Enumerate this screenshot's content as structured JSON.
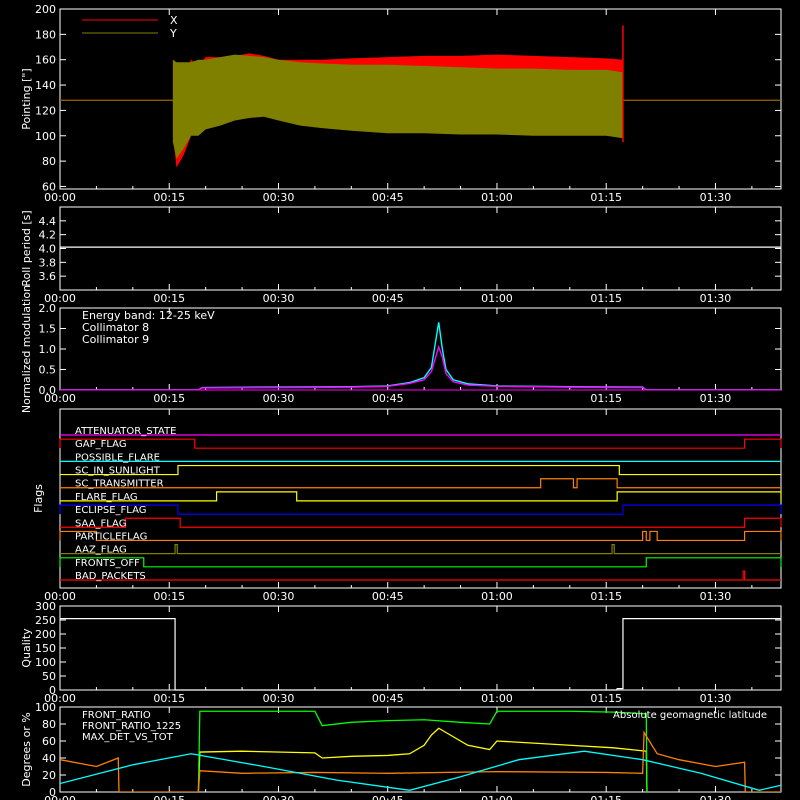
{
  "colors": {
    "background": "#000000",
    "axes": "#ffffff",
    "red": "#ff0000",
    "olive": "#808000",
    "cyan": "#00ffff",
    "magenta": "#ff00ff",
    "yellow": "#ffff00",
    "green": "#00ff00",
    "orange": "#ff8000",
    "blue": "#0000ff"
  },
  "time_axis": {
    "range_min": [
      0,
      99
    ],
    "ticks": [
      0,
      15,
      30,
      45,
      60,
      75,
      90
    ],
    "tick_labels": [
      "00:00",
      "00:15",
      "00:30",
      "00:45",
      "01:00",
      "01:15",
      "01:30"
    ]
  },
  "chart_data": [
    {
      "type": "area",
      "ylabel": "Pointing [\"]",
      "ylim": [
        58,
        200
      ],
      "yticks": [
        60,
        80,
        100,
        120,
        140,
        160,
        180,
        200
      ],
      "legend": [
        "X",
        "Y"
      ],
      "legend_position": "top-left",
      "series": [
        {
          "name": "X",
          "color": "#ff0000",
          "baseline": 128,
          "x": [
            15.5,
            16,
            17,
            18,
            19,
            20,
            22,
            24,
            26,
            28,
            30,
            33,
            36,
            40,
            45,
            50,
            55,
            60,
            65,
            70,
            75,
            77.3
          ],
          "upper": [
            160,
            125,
            150,
            160,
            155,
            162,
            162,
            163,
            165,
            163,
            160,
            160,
            160,
            161,
            162,
            163,
            163,
            164,
            163,
            162,
            161,
            160
          ],
          "lower": [
            100,
            75,
            85,
            100,
            110,
            112,
            117,
            118,
            119,
            120,
            120,
            120,
            120,
            119,
            118,
            118,
            118,
            117,
            117,
            118,
            118,
            118
          ]
        },
        {
          "name": "Y",
          "color": "#808000",
          "baseline": 128,
          "x": [
            15.5,
            16,
            17,
            18,
            19,
            20,
            22,
            24,
            26,
            28,
            30,
            33,
            36,
            40,
            45,
            50,
            55,
            60,
            65,
            70,
            75,
            77.3
          ],
          "upper": [
            160,
            158,
            158,
            158,
            160,
            160,
            162,
            164,
            163,
            162,
            160,
            158,
            157,
            156,
            156,
            155,
            154,
            153,
            153,
            152,
            152,
            150
          ],
          "lower": [
            95,
            82,
            90,
            100,
            100,
            105,
            108,
            112,
            114,
            115,
            112,
            108,
            106,
            104,
            102,
            102,
            101,
            101,
            100,
            100,
            100,
            98
          ]
        }
      ]
    },
    {
      "type": "line",
      "ylabel": "Roll period [s]",
      "ylim": [
        3.4,
        4.6
      ],
      "yticks": [
        3.6,
        3.8,
        4.0,
        4.2,
        4.4
      ],
      "series": [
        {
          "name": "",
          "color": "#ffffff",
          "x": [
            0,
            99
          ],
          "y": [
            4.02,
            4.02
          ]
        }
      ]
    },
    {
      "type": "line",
      "ylabel": "Normalized modulation",
      "ylim": [
        0,
        2.0
      ],
      "yticks": [
        0.0,
        0.5,
        1.0,
        1.5,
        2.0
      ],
      "annotation": "Energy band: 12-25 keV",
      "series": [
        {
          "name": "Collimator 8",
          "color": "#00ffff",
          "x": [
            0,
            19,
            19.5,
            30,
            40,
            45,
            48,
            50,
            51,
            52,
            52.5,
            53,
            54,
            56,
            60,
            70,
            80,
            80.5,
            99
          ],
          "y": [
            0.0,
            0.0,
            0.06,
            0.07,
            0.08,
            0.1,
            0.18,
            0.3,
            0.55,
            1.65,
            1.0,
            0.5,
            0.25,
            0.15,
            0.1,
            0.08,
            0.07,
            0.0,
            0.0
          ]
        },
        {
          "name": "Collimator 9",
          "color": "#ff00ff",
          "x": [
            0,
            19,
            19.5,
            30,
            40,
            45,
            48,
            50,
            51,
            52,
            52.5,
            53,
            54,
            56,
            60,
            70,
            80,
            80.5,
            99
          ],
          "y": [
            0.0,
            0.0,
            0.05,
            0.06,
            0.07,
            0.09,
            0.16,
            0.25,
            0.45,
            1.05,
            0.8,
            0.4,
            0.2,
            0.12,
            0.09,
            0.07,
            0.06,
            0.0,
            0.0
          ]
        }
      ]
    },
    {
      "type": "line",
      "ylabel": "Flags",
      "flags": [
        {
          "name": "ATTENUATOR_STATE",
          "color": "#ff00ff",
          "high": []
        },
        {
          "name": "GAP_FLAG",
          "color": "#ff0000",
          "high": [
            [
              0,
              18.5
            ],
            [
              94,
              99
            ]
          ]
        },
        {
          "name": "POSSIBLE_FLARE",
          "color": "#00ffff",
          "high": []
        },
        {
          "name": "SC_IN_SUNLIGHT",
          "color": "#ffff00",
          "high": [
            [
              16.2,
              76.8
            ]
          ]
        },
        {
          "name": "SC_TRANSMITTER",
          "color": "#ff8000",
          "high": [
            [
              66,
              70.5
            ],
            [
              71,
              76.5
            ]
          ]
        },
        {
          "name": "FLARE_FLAG",
          "color": "#ffff00",
          "high": [
            [
              21.5,
              32.5
            ],
            [
              76.5,
              99
            ]
          ]
        },
        {
          "name": "ECLIPSE_FLAG",
          "color": "#0000ff",
          "high": [
            [
              0,
              16.2
            ],
            [
              77.3,
              99
            ]
          ]
        },
        {
          "name": "SAA_FLAG",
          "color": "#ff0000",
          "high": [
            [
              9,
              16.5
            ],
            [
              94,
              99
            ]
          ]
        },
        {
          "name": "PARTICLEFLAG",
          "color": "#ff8000",
          "high": [
            [
              0,
              5
            ],
            [
              80,
              80.5
            ],
            [
              81,
              82
            ],
            [
              94,
              99
            ]
          ]
        },
        {
          "name": "AAZ_FLAG",
          "color": "#808000",
          "high": [
            [
              15.8,
              16.1
            ],
            [
              75.8,
              76.1
            ]
          ]
        },
        {
          "name": "FRONTS_OFF",
          "color": "#00ff00",
          "high": [
            [
              0,
              11.5
            ],
            [
              80.5,
              99
            ]
          ]
        },
        {
          "name": "BAD_PACKETS",
          "color": "#ff0000",
          "high": [
            [
              93.8,
              94.0
            ]
          ]
        }
      ]
    },
    {
      "type": "line",
      "ylabel": "Quality",
      "ylim": [
        0,
        300
      ],
      "yticks": [
        0,
        50,
        100,
        150,
        200,
        250,
        300
      ],
      "series": [
        {
          "name": "",
          "color": "#ffffff",
          "x": [
            0,
            15.8,
            15.8,
            76.5,
            76.5,
            77.3,
            77.3,
            99
          ],
          "y": [
            255,
            255,
            0,
            0,
            5,
            5,
            255,
            255
          ]
        }
      ]
    },
    {
      "type": "line",
      "ylabel": "Degrees or %",
      "ylim": [
        0,
        100
      ],
      "yticks": [
        0,
        20,
        40,
        60,
        80,
        100
      ],
      "annotation": "Absolute geomagnetic latitude",
      "series": [
        {
          "name": "FRONT_RATIO",
          "color": "#ffff00",
          "x": [
            19,
            19.2,
            25,
            35,
            36,
            40,
            45,
            48,
            50,
            51,
            52,
            54,
            56,
            59,
            60,
            70,
            76,
            80.5,
            80.6
          ],
          "y": [
            0,
            47,
            48,
            46,
            40,
            42,
            43,
            45,
            55,
            67,
            75,
            65,
            55,
            50,
            60,
            55,
            52,
            48,
            0
          ]
        },
        {
          "name": "FRONT_RATIO_1225",
          "color": "#00ff00",
          "x": [
            19,
            19.2,
            25,
            35,
            36,
            40,
            45,
            50,
            55,
            59,
            60,
            70,
            76,
            80.5,
            80.6
          ],
          "y": [
            0,
            95,
            95,
            95,
            78,
            82,
            84,
            85,
            82,
            80,
            95,
            95,
            94,
            92,
            0
          ]
        },
        {
          "name": "MAX_DET_VS_TOT",
          "color": "#ff8000",
          "x": [
            0,
            5,
            8,
            8.1,
            19,
            19.2,
            25,
            35,
            45,
            60,
            75,
            80,
            80.2,
            82,
            85,
            90,
            94,
            94.1,
            99
          ],
          "y": [
            38,
            30,
            40,
            0,
            0,
            25,
            22,
            23,
            22,
            24,
            23,
            22,
            70,
            45,
            38,
            30,
            35,
            0,
            0
          ]
        },
        {
          "name": "Absolute geomagnetic latitude",
          "color": "#00ffff",
          "x": [
            0,
            10,
            18,
            28,
            38,
            48,
            55,
            63,
            72,
            80,
            88,
            96,
            99
          ],
          "y": [
            10,
            32,
            45,
            30,
            14,
            2,
            18,
            38,
            48,
            38,
            22,
            2,
            8
          ]
        }
      ]
    }
  ]
}
